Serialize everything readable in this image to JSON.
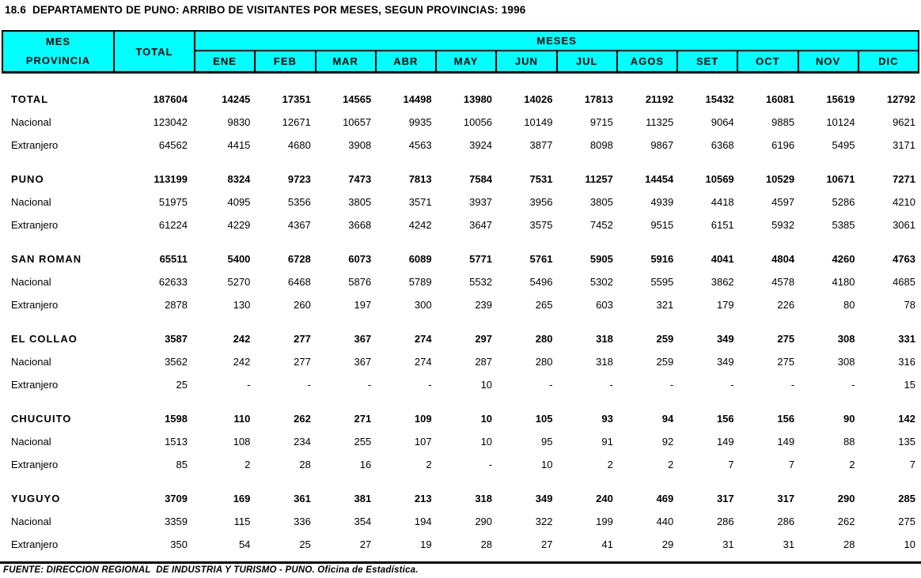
{
  "title": "18.6  DEPARTAMENTO DE PUNO: ARRIBO DE VISITANTES POR MESES, SEGUN PROVINCIAS: 1996",
  "colors": {
    "header_bg": "#00FFFF",
    "border": "#000000",
    "text": "#000000",
    "page_bg": "#FFFFFF"
  },
  "table": {
    "header": {
      "corner_top": "MES",
      "corner_bottom": "PROVINCIA",
      "total_col": "TOTAL",
      "months_group": "MESES",
      "months": [
        "ENE",
        "FEB",
        "MAR",
        "ABR",
        "MAY",
        "JUN",
        "JUL",
        "AGOS",
        "SET",
        "OCT",
        "NOV",
        "DIC"
      ]
    },
    "groups": [
      {
        "rows": [
          {
            "label": "TOTAL",
            "bold": true,
            "total": "187604",
            "values": [
              "14245",
              "17351",
              "14565",
              "14498",
              "13980",
              "14026",
              "17813",
              "21192",
              "15432",
              "16081",
              "15619",
              "12792"
            ]
          },
          {
            "label": "Nacional",
            "bold": false,
            "total": "123042",
            "values": [
              "9830",
              "12671",
              "10657",
              "9935",
              "10056",
              "10149",
              "9715",
              "11325",
              "9064",
              "9885",
              "10124",
              "9621"
            ]
          },
          {
            "label": "Extranjero",
            "bold": false,
            "total": "64562",
            "values": [
              "4415",
              "4680",
              "3908",
              "4563",
              "3924",
              "3877",
              "8098",
              "9867",
              "6368",
              "6196",
              "5495",
              "3171"
            ]
          }
        ]
      },
      {
        "rows": [
          {
            "label": "PUNO",
            "bold": true,
            "total": "113199",
            "values": [
              "8324",
              "9723",
              "7473",
              "7813",
              "7584",
              "7531",
              "11257",
              "14454",
              "10569",
              "10529",
              "10671",
              "7271"
            ]
          },
          {
            "label": "Nacional",
            "bold": false,
            "total": "51975",
            "values": [
              "4095",
              "5356",
              "3805",
              "3571",
              "3937",
              "3956",
              "3805",
              "4939",
              "4418",
              "4597",
              "5286",
              "4210"
            ]
          },
          {
            "label": "Extranjero",
            "bold": false,
            "total": "61224",
            "values": [
              "4229",
              "4367",
              "3668",
              "4242",
              "3647",
              "3575",
              "7452",
              "9515",
              "6151",
              "5932",
              "5385",
              "3061"
            ]
          }
        ]
      },
      {
        "rows": [
          {
            "label": "SAN ROMAN",
            "bold": true,
            "total": "65511",
            "values": [
              "5400",
              "6728",
              "6073",
              "6089",
              "5771",
              "5761",
              "5905",
              "5916",
              "4041",
              "4804",
              "4260",
              "4763"
            ]
          },
          {
            "label": "Nacional",
            "bold": false,
            "total": "62633",
            "values": [
              "5270",
              "6468",
              "5876",
              "5789",
              "5532",
              "5496",
              "5302",
              "5595",
              "3862",
              "4578",
              "4180",
              "4685"
            ]
          },
          {
            "label": "Extranjero",
            "bold": false,
            "total": "2878",
            "values": [
              "130",
              "260",
              "197",
              "300",
              "239",
              "265",
              "603",
              "321",
              "179",
              "226",
              "80",
              "78"
            ]
          }
        ]
      },
      {
        "rows": [
          {
            "label": "EL COLLAO",
            "bold": true,
            "total": "3587",
            "values": [
              "242",
              "277",
              "367",
              "274",
              "297",
              "280",
              "318",
              "259",
              "349",
              "275",
              "308",
              "331"
            ]
          },
          {
            "label": "Nacional",
            "bold": false,
            "total": "3562",
            "values": [
              "242",
              "277",
              "367",
              "274",
              "287",
              "280",
              "318",
              "259",
              "349",
              "275",
              "308",
              "316"
            ]
          },
          {
            "label": "Extranjero",
            "bold": false,
            "total": "25",
            "values": [
              "-",
              "-",
              "-",
              "-",
              "10",
              "-",
              "-",
              "-",
              "-",
              "-",
              "-",
              "15"
            ]
          }
        ]
      },
      {
        "rows": [
          {
            "label": "CHUCUITO",
            "bold": true,
            "total": "1598",
            "values": [
              "110",
              "262",
              "271",
              "109",
              "10",
              "105",
              "93",
              "94",
              "156",
              "156",
              "90",
              "142"
            ]
          },
          {
            "label": "Nacional",
            "bold": false,
            "total": "1513",
            "values": [
              "108",
              "234",
              "255",
              "107",
              "10",
              "95",
              "91",
              "92",
              "149",
              "149",
              "88",
              "135"
            ]
          },
          {
            "label": "Extranjero",
            "bold": false,
            "total": "85",
            "values": [
              "2",
              "28",
              "16",
              "2",
              "-",
              "10",
              "2",
              "2",
              "7",
              "7",
              "2",
              "7"
            ]
          }
        ]
      },
      {
        "rows": [
          {
            "label": "YUGUYO",
            "bold": true,
            "total": "3709",
            "values": [
              "169",
              "361",
              "381",
              "213",
              "318",
              "349",
              "240",
              "469",
              "317",
              "317",
              "290",
              "285"
            ]
          },
          {
            "label": "Nacional",
            "bold": false,
            "total": "3359",
            "values": [
              "115",
              "336",
              "354",
              "194",
              "290",
              "322",
              "199",
              "440",
              "286",
              "286",
              "262",
              "275"
            ]
          },
          {
            "label": "Extranjero",
            "bold": false,
            "total": "350",
            "values": [
              "54",
              "25",
              "27",
              "19",
              "28",
              "27",
              "41",
              "29",
              "31",
              "31",
              "28",
              "10"
            ]
          }
        ]
      }
    ]
  },
  "footer": {
    "source": "FUENTE: DIRECCION REGIONAL  DE INDUSTRIA Y TURISMO - PUNO. Oficina de Estadística."
  }
}
